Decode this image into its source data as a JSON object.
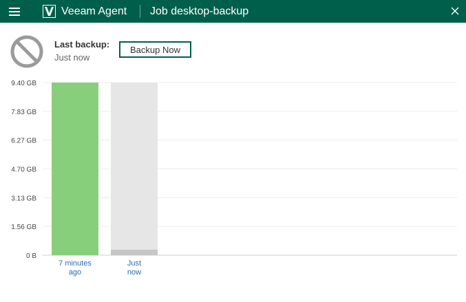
{
  "header": {
    "app_name": "Veeam Agent",
    "job_title": "Job desktop-backup"
  },
  "status": {
    "last_backup_label": "Last backup:",
    "last_backup_value": "Just now",
    "backup_now_label": "Backup Now"
  },
  "icons": {
    "menu": "hamburger-menu-icon",
    "logo": "veeam-logo-icon",
    "close": "close-icon",
    "status": "prohibited-status-icon"
  },
  "colors": {
    "titlebar": "#005f4b",
    "bar_success": "#88cf7c",
    "bar_placeholder": "#e6e6e6",
    "bar_current": "#c6c6c6",
    "link": "#2a6eb5"
  },
  "chart_data": {
    "type": "bar",
    "y_ticks": [
      "0 B",
      "1.56 GB",
      "3.13 GB",
      "4.70 GB",
      "6.27 GB",
      "7.83 GB",
      "9.40 GB"
    ],
    "ylim": [
      0,
      9.4
    ],
    "yunit": "GB",
    "categories": [
      "7 minutes ago",
      "Just now"
    ],
    "category_lines": [
      [
        "7 minutes",
        "ago"
      ],
      [
        "Just",
        "now"
      ]
    ],
    "values": [
      9.4,
      0.3
    ],
    "grid": true
  }
}
